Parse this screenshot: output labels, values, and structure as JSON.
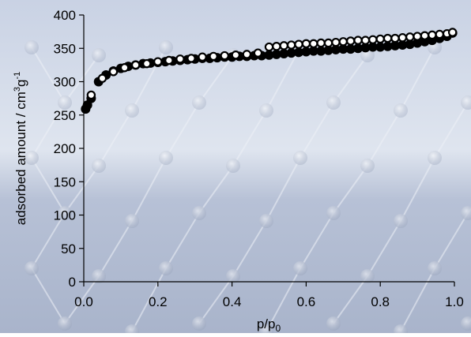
{
  "chart_data": {
    "type": "scatter",
    "xlabel_base": "p/p",
    "xlabel_sub": "0",
    "ylabel_main": "adsorbed amount / cm",
    "ylabel_sup1": "3",
    "ylabel_mid": "g",
    "ylabel_sup2": "-1",
    "xlim": [
      0,
      1
    ],
    "ylim": [
      0,
      400
    ],
    "xticks": [
      "0.0",
      "0.2",
      "0.4",
      "0.6",
      "0.8",
      "1.0"
    ],
    "yticks": [
      "0",
      "50",
      "100",
      "150",
      "200",
      "250",
      "300",
      "350",
      "400"
    ],
    "grid": false,
    "legend": "none",
    "series": [
      {
        "marker": "filled-circle",
        "color": "#000000",
        "x": [
          0.005,
          0.01,
          0.02,
          0.04,
          0.06,
          0.08,
          0.1,
          0.12,
          0.14,
          0.16,
          0.18,
          0.2,
          0.22,
          0.24,
          0.26,
          0.28,
          0.3,
          0.32,
          0.34,
          0.36,
          0.38,
          0.4,
          0.42,
          0.44,
          0.46,
          0.48,
          0.5,
          0.52,
          0.54,
          0.56,
          0.58,
          0.6,
          0.62,
          0.64,
          0.66,
          0.68,
          0.7,
          0.72,
          0.74,
          0.76,
          0.78,
          0.8,
          0.82,
          0.84,
          0.86,
          0.88,
          0.9,
          0.92,
          0.94,
          0.96,
          0.98,
          0.995
        ],
        "y": [
          259,
          265,
          275,
          300,
          310,
          316,
          320,
          323,
          325,
          327,
          328,
          329,
          330,
          331,
          332,
          333,
          334,
          335,
          335,
          336,
          337,
          337,
          338,
          338,
          339,
          339,
          340,
          341,
          342,
          343,
          344,
          345,
          346,
          346,
          347,
          348,
          349,
          349,
          350,
          351,
          352,
          352,
          353,
          354,
          355,
          356,
          358,
          360,
          362,
          365,
          368,
          373
        ]
      },
      {
        "marker": "open-circle",
        "color": "#000000",
        "x": [
          0.02,
          0.05,
          0.08,
          0.11,
          0.14,
          0.17,
          0.2,
          0.23,
          0.26,
          0.29,
          0.32,
          0.35,
          0.38,
          0.41,
          0.44,
          0.47,
          0.5,
          0.52,
          0.54,
          0.56,
          0.58,
          0.6,
          0.62,
          0.64,
          0.66,
          0.68,
          0.7,
          0.72,
          0.74,
          0.76,
          0.78,
          0.8,
          0.82,
          0.84,
          0.86,
          0.88,
          0.9,
          0.92,
          0.94,
          0.96,
          0.98,
          0.995
        ],
        "y": [
          280,
          305,
          315,
          321,
          325,
          327,
          330,
          332,
          334,
          335,
          337,
          338,
          339,
          340,
          341,
          343,
          352,
          353,
          354,
          355,
          356,
          357,
          357,
          358,
          358,
          359,
          360,
          361,
          362,
          362,
          363,
          364,
          365,
          365,
          366,
          367,
          368,
          369,
          370,
          371,
          372,
          374
        ]
      }
    ]
  }
}
